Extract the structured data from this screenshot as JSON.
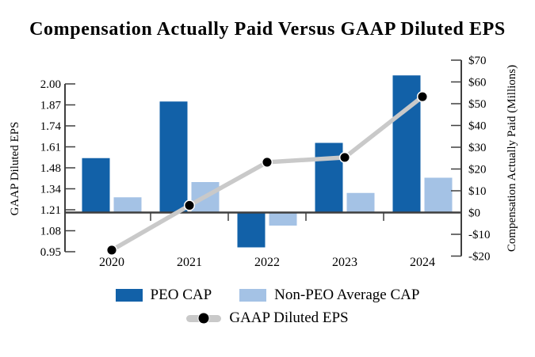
{
  "chart_data": {
    "type": "combo-bar-line",
    "title": "Compensation Actually Paid Versus GAAP Diluted EPS",
    "categories": [
      "2020",
      "2021",
      "2022",
      "2023",
      "2024"
    ],
    "series": [
      {
        "name": "PEO CAP",
        "type": "bar",
        "axis": "right",
        "color": "#1261a8",
        "values": [
          25,
          51,
          -16,
          32,
          63
        ]
      },
      {
        "name": "Non-PEO Average CAP",
        "type": "bar",
        "axis": "right",
        "color": "#a4c2e5",
        "values": [
          7,
          14,
          -6,
          9,
          16
        ]
      },
      {
        "name": "GAAP Diluted EPS",
        "type": "line",
        "axis": "left",
        "line_color": "#c9c9c9",
        "marker_color": "#000000",
        "values": [
          0.96,
          1.24,
          1.51,
          1.54,
          1.92
        ]
      }
    ],
    "left_axis": {
      "label": "GAAP Diluted EPS",
      "min": 0.95,
      "max": 2.0,
      "tick_labels": [
        "0.95",
        "1.08",
        "1.21",
        "1.34",
        "1.48",
        "1.61",
        "1.74",
        "1.87",
        "2.00"
      ]
    },
    "right_axis": {
      "label": "Compensation Actually Paid (Millions)",
      "min": -20,
      "max": 70,
      "tick_labels": [
        "-$20",
        "-$10",
        "$0",
        "$10",
        "$20",
        "$30",
        "$40",
        "$50",
        "$60",
        "$70"
      ]
    },
    "grid": "off",
    "legend_position": "bottom",
    "axis_color": "#3f3f3f"
  }
}
